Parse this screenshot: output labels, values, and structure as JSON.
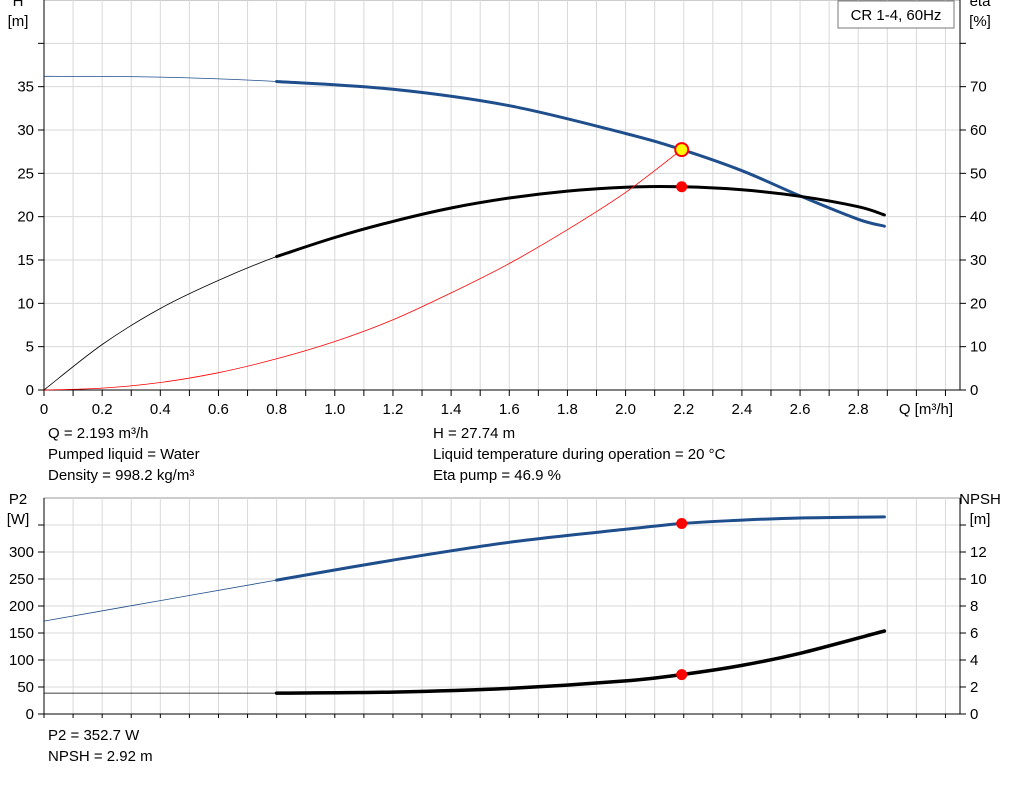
{
  "chart_data": [
    {
      "type": "line",
      "legend_box": "CR 1-4, 60Hz",
      "x_axis": {
        "label": "Q [m³/h]",
        "min": 0,
        "max": 3.15,
        "ticks": [
          "0",
          "0.2",
          "0.4",
          "0.6",
          "0.8",
          "1.0",
          "1.2",
          "1.4",
          "1.6",
          "1.8",
          "2.0",
          "2.2",
          "2.4",
          "2.6",
          "2.8"
        ]
      },
      "y_left": {
        "label_line1": "H",
        "label_line2": "[m]",
        "min": 0,
        "max": 45,
        "ticks": [
          "0",
          "5",
          "10",
          "15",
          "20",
          "25",
          "30",
          "35"
        ]
      },
      "y_right": {
        "label_line1": "eta",
        "label_line2": "[%]",
        "min": 0,
        "max": 90,
        "ticks": [
          "0",
          "10",
          "20",
          "30",
          "40",
          "50",
          "60",
          "70"
        ]
      },
      "grid": true,
      "series": [
        {
          "axis": "left",
          "color": "#1f4e8c",
          "x": [
            0,
            0.4,
            0.8,
            1.2,
            1.6,
            2.0,
            2.193,
            2.4,
            2.6,
            2.8,
            2.89
          ],
          "y": [
            36.2,
            36.1,
            35.6,
            34.7,
            32.8,
            29.6,
            27.74,
            25.3,
            22.4,
            19.7,
            18.9
          ],
          "operating_range": [
            0.8,
            2.89
          ]
        },
        {
          "axis": "right",
          "color": "#000000",
          "x": [
            0,
            0.2,
            0.4,
            0.6,
            0.8,
            1.0,
            1.2,
            1.4,
            1.6,
            1.8,
            2.0,
            2.193,
            2.4,
            2.6,
            2.8,
            2.89
          ],
          "y": [
            0,
            10.5,
            18.8,
            25.3,
            30.8,
            35.2,
            38.9,
            42.0,
            44.3,
            45.9,
            46.8,
            46.9,
            46.2,
            44.7,
            42.3,
            40.4
          ],
          "operating_range": [
            0.8,
            2.89
          ]
        },
        {
          "axis": "left",
          "color": "#ff0000",
          "x": [
            0,
            0.2,
            0.4,
            0.6,
            0.8,
            1.0,
            1.2,
            1.4,
            1.6,
            1.8,
            2.0,
            2.193
          ],
          "y": [
            0,
            0.22,
            0.86,
            2.0,
            3.6,
            5.6,
            8.1,
            11.2,
            14.6,
            18.5,
            22.8,
            27.74
          ]
        }
      ],
      "operating_point": {
        "x": 2.193,
        "head": 27.74,
        "eta": 46.9
      }
    },
    {
      "type": "line",
      "x_axis": {
        "min": 0,
        "max": 3.15
      },
      "y_left": {
        "label_line1": "P2",
        "label_line2": "[W]",
        "min": 0,
        "max": 400,
        "ticks": [
          "0",
          "50",
          "100",
          "150",
          "200",
          "250",
          "300"
        ]
      },
      "y_right": {
        "label_line1": "NPSH",
        "label_line2": "[m]",
        "min": 0,
        "max": 16,
        "ticks": [
          "0",
          "2",
          "4",
          "6",
          "8",
          "10",
          "12"
        ]
      },
      "grid": true,
      "series": [
        {
          "axis": "left",
          "color": "#1f4e8c",
          "x": [
            0,
            0.4,
            0.8,
            1.2,
            1.6,
            2.0,
            2.193,
            2.4,
            2.6,
            2.89
          ],
          "y": [
            172,
            210,
            248,
            285,
            318,
            342,
            352.7,
            359,
            363,
            365
          ],
          "operating_range": [
            0.8,
            2.89
          ]
        },
        {
          "axis": "right",
          "color": "#000000",
          "x": [
            0,
            0.4,
            0.8,
            1.2,
            1.6,
            2.0,
            2.193,
            2.4,
            2.6,
            2.89
          ],
          "y": [
            1.55,
            1.55,
            1.55,
            1.62,
            1.9,
            2.45,
            2.92,
            3.6,
            4.5,
            6.15
          ],
          "operating_range": [
            0.8,
            2.89
          ]
        }
      ],
      "operating_point": {
        "x": 2.193,
        "p2": 352.7,
        "npsh": 2.92
      }
    }
  ],
  "info_top": {
    "q": "Q = 2.193 m³/h",
    "liquid": "Pumped liquid = Water",
    "density": "Density = 998.2 kg/m³",
    "h": "H = 27.74 m",
    "temp": "Liquid temperature during operation = 20 °C",
    "eta": "Eta pump = 46.9 %"
  },
  "info_bottom": {
    "p2": "P2 = 352.7 W",
    "npsh": "NPSH = 2.92 m"
  }
}
